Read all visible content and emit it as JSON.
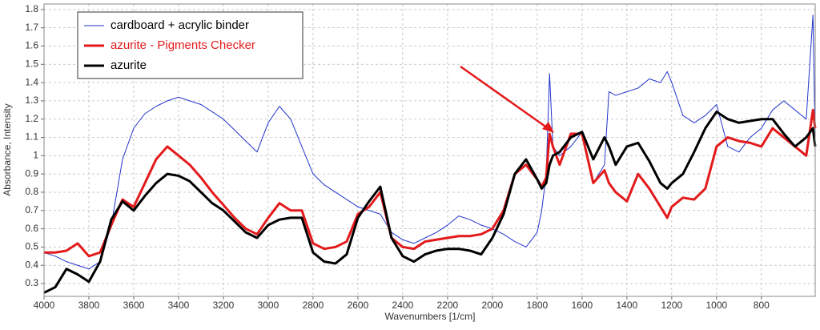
{
  "chart_data": {
    "type": "line",
    "x_label": "Wavenumbers [1/cm]",
    "y_label": "Absorbance, Intensity",
    "x": [
      4000,
      3950,
      3900,
      3850,
      3800,
      3750,
      3700,
      3650,
      3600,
      3550,
      3500,
      3450,
      3400,
      3350,
      3300,
      3250,
      3200,
      3150,
      3100,
      3050,
      3000,
      2950,
      2900,
      2850,
      2800,
      2750,
      2700,
      2650,
      2600,
      2550,
      2500,
      2450,
      2400,
      2350,
      2300,
      2250,
      2200,
      2150,
      2100,
      2050,
      2000,
      1950,
      1900,
      1850,
      1800,
      1780,
      1760,
      1745,
      1730,
      1700,
      1650,
      1600,
      1550,
      1500,
      1480,
      1450,
      1400,
      1350,
      1300,
      1250,
      1220,
      1200,
      1150,
      1100,
      1050,
      1000,
      950,
      900,
      850,
      800,
      750,
      700,
      650,
      600,
      570,
      560
    ],
    "series": [
      {
        "name": "cardboard + acrylic binder",
        "color": "#2233cc",
        "width": 1,
        "values": [
          0.47,
          0.45,
          0.42,
          0.4,
          0.38,
          0.42,
          0.62,
          0.98,
          1.15,
          1.23,
          1.27,
          1.3,
          1.32,
          1.3,
          1.28,
          1.24,
          1.2,
          1.14,
          1.08,
          1.02,
          1.18,
          1.27,
          1.2,
          1.05,
          0.9,
          0.84,
          0.8,
          0.76,
          0.72,
          0.7,
          0.68,
          0.58,
          0.54,
          0.52,
          0.55,
          0.58,
          0.62,
          0.67,
          0.65,
          0.62,
          0.6,
          0.57,
          0.53,
          0.5,
          0.58,
          0.7,
          0.9,
          1.45,
          1.05,
          1.0,
          1.05,
          1.13,
          0.85,
          0.95,
          1.35,
          1.33,
          1.35,
          1.37,
          1.42,
          1.4,
          1.46,
          1.4,
          1.22,
          1.18,
          1.22,
          1.28,
          1.05,
          1.02,
          1.1,
          1.15,
          1.25,
          1.3,
          1.25,
          1.2,
          1.77,
          1.1
        ]
      },
      {
        "name": "azurite - Pigments Checker",
        "color": "#e31a1c",
        "width": 3,
        "values": [
          0.47,
          0.47,
          0.48,
          0.52,
          0.45,
          0.47,
          0.62,
          0.76,
          0.72,
          0.85,
          0.98,
          1.05,
          1.0,
          0.95,
          0.88,
          0.8,
          0.73,
          0.66,
          0.6,
          0.57,
          0.66,
          0.74,
          0.7,
          0.7,
          0.52,
          0.49,
          0.5,
          0.53,
          0.68,
          0.72,
          0.8,
          0.55,
          0.5,
          0.49,
          0.53,
          0.54,
          0.55,
          0.56,
          0.56,
          0.57,
          0.6,
          0.7,
          0.9,
          0.95,
          0.87,
          0.83,
          0.88,
          1.12,
          1.05,
          0.95,
          1.12,
          1.12,
          0.85,
          0.92,
          0.85,
          0.8,
          0.75,
          0.9,
          0.82,
          0.72,
          0.66,
          0.72,
          0.77,
          0.76,
          0.82,
          1.05,
          1.1,
          1.08,
          1.07,
          1.05,
          1.15,
          1.1,
          1.05,
          1.0,
          1.25,
          1.15
        ]
      },
      {
        "name": "azurite",
        "color": "#000000",
        "width": 3,
        "values": [
          0.25,
          0.28,
          0.38,
          0.35,
          0.31,
          0.42,
          0.65,
          0.75,
          0.7,
          0.78,
          0.85,
          0.9,
          0.89,
          0.86,
          0.8,
          0.74,
          0.7,
          0.64,
          0.58,
          0.55,
          0.62,
          0.65,
          0.66,
          0.66,
          0.47,
          0.42,
          0.41,
          0.46,
          0.66,
          0.75,
          0.83,
          0.55,
          0.45,
          0.42,
          0.46,
          0.48,
          0.49,
          0.49,
          0.48,
          0.46,
          0.55,
          0.68,
          0.9,
          0.98,
          0.87,
          0.82,
          0.85,
          0.95,
          1.0,
          1.02,
          1.1,
          1.13,
          0.98,
          1.1,
          1.05,
          0.95,
          1.05,
          1.07,
          0.97,
          0.85,
          0.82,
          0.85,
          0.9,
          1.02,
          1.15,
          1.24,
          1.2,
          1.18,
          1.19,
          1.2,
          1.2,
          1.12,
          1.05,
          1.1,
          1.15,
          1.05
        ]
      }
    ],
    "xlim": [
      4000,
      560
    ],
    "xticks": [
      4000,
      3800,
      3600,
      3400,
      3200,
      3000,
      2800,
      2600,
      2400,
      2200,
      2000,
      1800,
      1600,
      1400,
      1200,
      1000,
      800
    ],
    "ylim": [
      0.23,
      1.83
    ],
    "yticks": [
      0.3,
      0.4,
      0.5,
      0.6,
      0.7,
      0.8,
      0.9,
      1,
      1.1,
      1.2,
      1.3,
      1.4,
      1.5,
      1.6,
      1.7,
      1.8
    ],
    "grid": true,
    "legend": "top-left"
  }
}
